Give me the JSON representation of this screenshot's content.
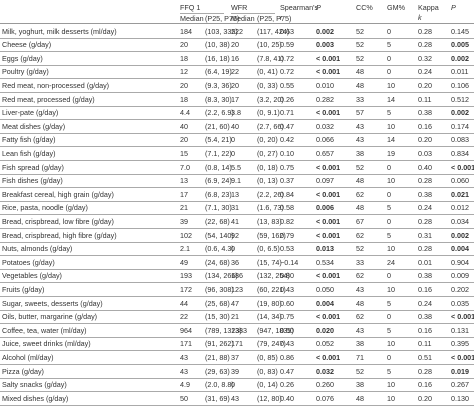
{
  "header": {
    "ffq_group": "FFQ 1",
    "wfr_group": "WFR",
    "median_1": "Median",
    "p_range_1": "(P25, P75)",
    "median_2": "Median",
    "p_range_2": "(P25, P75)",
    "spearman_1": "Spearman's",
    "spearman_2": "r",
    "p_col": "P",
    "cc": "CC%",
    "gm": "GM%",
    "kappa_1": "Kappa",
    "kappa_2": "k",
    "p_col2": "P"
  },
  "rows": [
    {
      "food": "Milk, yoghurt, milk desserts (ml/day)",
      "ffq_median": "184",
      "ffq_range": "(103, 335)",
      "wfr_median": "222",
      "wfr_range": "(117, 424)",
      "spearman": "0.63",
      "p": "0.002",
      "p_bold": true,
      "cc": "52",
      "gm": "0",
      "kappa": "0.28",
      "p2": "0.145",
      "p2_bold": false
    },
    {
      "food": "Cheese (g/day)",
      "ffq_median": "20",
      "ffq_range": "(10, 38)",
      "wfr_median": "20",
      "wfr_range": "(10, 25)",
      "spearman": "0.59",
      "p": "0.003",
      "p_bold": true,
      "cc": "52",
      "gm": "5",
      "kappa": "0.28",
      "p2": "0.005",
      "p2_bold": true
    },
    {
      "food": "Eggs (g/day)",
      "ffq_median": "18",
      "ffq_range": "(16, 18)",
      "wfr_median": "16",
      "wfr_range": "(7.8, 41)",
      "spearman": "0.72",
      "p": "< 0.001",
      "p_bold": true,
      "cc": "52",
      "gm": "0",
      "kappa": "0.32",
      "p2": "0.002",
      "p2_bold": true
    },
    {
      "food": "Poultry (g/day)",
      "ffq_median": "12",
      "ffq_range": "(6.4, 19)",
      "wfr_median": "22",
      "wfr_range": "(0, 41)",
      "spearman": "0.72",
      "p": "< 0.001",
      "p_bold": true,
      "cc": "48",
      "gm": "0",
      "kappa": "0.24",
      "p2": "0.011",
      "p2_bold": false
    },
    {
      "food": "Red meat, non-processed (g/day)",
      "ffq_median": "20",
      "ffq_range": "(9.3, 36)",
      "wfr_median": "20",
      "wfr_range": "(0, 33)",
      "spearman": "0.55",
      "p": "0.010",
      "p_bold": false,
      "cc": "48",
      "gm": "10",
      "kappa": "0.20",
      "p2": "0.106",
      "p2_bold": false
    },
    {
      "food": "Red meat, processed (g/day)",
      "ffq_median": "18",
      "ffq_range": "(8.3, 30)",
      "wfr_median": "17",
      "wfr_range": "(3.2, 20)",
      "spearman": "0.26",
      "p": "0.282",
      "p_bold": false,
      "cc": "33",
      "gm": "14",
      "kappa": "0.11",
      "p2": "0.512",
      "p2_bold": false
    },
    {
      "food": "Liver-pate (g/day)",
      "ffq_median": "4.4",
      "ffq_range": "(2.2, 6.9)",
      "wfr_median": "3.8",
      "wfr_range": "(0, 9.1)",
      "spearman": "0.71",
      "p": "< 0.001",
      "p_bold": true,
      "cc": "57",
      "gm": "5",
      "kappa": "0.38",
      "p2": "0.002",
      "p2_bold": true
    },
    {
      "food": "Meat dishes (g/day)",
      "ffq_median": "40",
      "ffq_range": "(21, 60)",
      "wfr_median": "40",
      "wfr_range": "(2.7, 66)",
      "spearman": "0.47",
      "p": "0.032",
      "p_bold": false,
      "cc": "43",
      "gm": "10",
      "kappa": "0.16",
      "p2": "0.174",
      "p2_bold": false
    },
    {
      "food": "Fatty fish (g/day)",
      "ffq_median": "20",
      "ffq_range": "(5.4, 21)",
      "wfr_median": "0",
      "wfr_range": "(0, 20)",
      "spearman": "0.42",
      "p": "0.066",
      "p_bold": false,
      "cc": "43",
      "gm": "14",
      "kappa": "0.20",
      "p2": "0.083",
      "p2_bold": false
    },
    {
      "food": "Lean fish (g/day)",
      "ffq_median": "15",
      "ffq_range": "(7.1, 22)",
      "wfr_median": "0",
      "wfr_range": "(0, 27)",
      "spearman": "0.10",
      "p": "0.657",
      "p_bold": false,
      "cc": "38",
      "gm": "19",
      "kappa": "0.03",
      "p2": "0.834",
      "p2_bold": false
    },
    {
      "food": "Fish spread (g/day)",
      "ffq_median": "7.0",
      "ffq_range": "(0.8, 14)",
      "wfr_median": "5.5",
      "wfr_range": "(0, 18)",
      "spearman": "0.75",
      "p": "< 0.001",
      "p_bold": true,
      "cc": "52",
      "gm": "0",
      "kappa": "0.40",
      "p2": "< 0.001",
      "p2_bold": true
    },
    {
      "food": "Fish dishes (g/day)",
      "ffq_median": "13",
      "ffq_range": "(6.9, 24)",
      "wfr_median": "9.1",
      "wfr_range": "(0, 13)",
      "spearman": "0.37",
      "p": "0.097",
      "p_bold": false,
      "cc": "48",
      "gm": "10",
      "kappa": "0.28",
      "p2": "0.060",
      "p2_bold": false
    },
    {
      "food": "Breakfast cereal, high grain (g/day)",
      "ffq_median": "17",
      "ffq_range": "(6.8, 23)",
      "wfr_median": "13",
      "wfr_range": "(2.2, 26)",
      "spearman": "0.84",
      "p": "< 0.001",
      "p_bold": true,
      "cc": "62",
      "gm": "0",
      "kappa": "0.38",
      "p2": "0.021",
      "p2_bold": true
    },
    {
      "food": "Rice, pasta, noodle (g/day)",
      "ffq_median": "21",
      "ffq_range": "(7.1, 30)",
      "wfr_median": "31",
      "wfr_range": "(1.6, 73)",
      "spearman": "0.58",
      "p": "0.006",
      "p_bold": true,
      "cc": "48",
      "gm": "5",
      "kappa": "0.24",
      "p2": "0.012",
      "p2_bold": false
    },
    {
      "food": "Bread, crispbread, low fibre (g/day)",
      "ffq_median": "39",
      "ffq_range": "(22, 68)",
      "wfr_median": "41",
      "wfr_range": "(13, 83)",
      "spearman": "0.82",
      "p": "< 0.001",
      "p_bold": true,
      "cc": "67",
      "gm": "0",
      "kappa": "0.28",
      "p2": "0.034",
      "p2_bold": false
    },
    {
      "food": "Bread, crispbread, high fibre (g/day)",
      "ffq_median": "102",
      "ffq_range": "(54, 140)",
      "wfr_median": "92",
      "wfr_range": "(59, 162)",
      "spearman": "0.79",
      "p": "< 0.001",
      "p_bold": true,
      "cc": "62",
      "gm": "5",
      "kappa": "0.31",
      "p2": "0.002",
      "p2_bold": true
    },
    {
      "food": "Nuts, almonds (g/day)",
      "ffq_median": "2.1",
      "ffq_range": "(0.6, 4.3)",
      "wfr_median": "0",
      "wfr_range": "(0, 6.5)",
      "spearman": "0.53",
      "p": "0.013",
      "p_bold": true,
      "cc": "52",
      "gm": "10",
      "kappa": "0.28",
      "p2": "0.004",
      "p2_bold": true
    },
    {
      "food": "Potatoes (g/day)",
      "ffq_median": "49",
      "ffq_range": "(24, 68)",
      "wfr_median": "36",
      "wfr_range": "(15, 74)",
      "spearman": "−0.14",
      "p": "0.534",
      "p_bold": false,
      "cc": "33",
      "gm": "24",
      "kappa": "0.01",
      "p2": "0.904",
      "p2_bold": false
    },
    {
      "food": "Vegetables (g/day)",
      "ffq_median": "193",
      "ffq_range": "(134, 266)",
      "wfr_median": "186",
      "wfr_range": "(132, 254)",
      "spearman": "0.80",
      "p": "< 0.001",
      "p_bold": true,
      "cc": "62",
      "gm": "0",
      "kappa": "0.38",
      "p2": "0.009",
      "p2_bold": false
    },
    {
      "food": "Fruits (g/day)",
      "ffq_median": "172",
      "ffq_range": "(96, 308)",
      "wfr_median": "123",
      "wfr_range": "(60, 221)",
      "spearman": "0.43",
      "p": "0.050",
      "p_bold": false,
      "cc": "43",
      "gm": "10",
      "kappa": "0.16",
      "p2": "0.202",
      "p2_bold": false
    },
    {
      "food": "Sugar, sweets, desserts (g/day)",
      "ffq_median": "44",
      "ffq_range": "(25, 68)",
      "wfr_median": "47",
      "wfr_range": "(19, 80)",
      "spearman": "0.60",
      "p": "0.004",
      "p_bold": true,
      "cc": "48",
      "gm": "5",
      "kappa": "0.24",
      "p2": "0.035",
      "p2_bold": false
    },
    {
      "food": "Oils, butter, margarine (g/day)",
      "ffq_median": "22",
      "ffq_range": "(15, 30)",
      "wfr_median": "21",
      "wfr_range": "(14, 34)",
      "spearman": "0.75",
      "p": "< 0.001",
      "p_bold": true,
      "cc": "62",
      "gm": "0",
      "kappa": "0.38",
      "p2": "< 0.001",
      "p2_bold": true
    },
    {
      "food": "Coffee, tea, water (ml/day)",
      "ffq_median": "964",
      "ffq_range": "(789, 1323)",
      "wfr_median": "1383",
      "wfr_range": "(947, 1835)",
      "spearman": "0.50",
      "p": "0.020",
      "p_bold": true,
      "cc": "43",
      "gm": "5",
      "kappa": "0.16",
      "p2": "0.131",
      "p2_bold": false
    },
    {
      "food": "Juice, sweet drinks (ml/day)",
      "ffq_median": "171",
      "ffq_range": "(91, 262)",
      "wfr_median": "171",
      "wfr_range": "(79, 247)",
      "spearman": "0.43",
      "p": "0.052",
      "p_bold": false,
      "cc": "38",
      "gm": "10",
      "kappa": "0.11",
      "p2": "0.395",
      "p2_bold": false
    },
    {
      "food": "Alcohol (ml/day)",
      "ffq_median": "43",
      "ffq_range": "(21, 88)",
      "wfr_median": "37",
      "wfr_range": "(0, 85)",
      "spearman": "0.86",
      "p": "< 0.001",
      "p_bold": true,
      "cc": "71",
      "gm": "0",
      "kappa": "0.51",
      "p2": "< 0.001",
      "p2_bold": true
    },
    {
      "food": "Pizza (g/day)",
      "ffq_median": "43",
      "ffq_range": "(29, 63)",
      "wfr_median": "39",
      "wfr_range": "(0, 83)",
      "spearman": "0.47",
      "p": "0.032",
      "p_bold": true,
      "cc": "52",
      "gm": "5",
      "kappa": "0.28",
      "p2": "0.019",
      "p2_bold": true
    },
    {
      "food": "Salty snacks (g/day)",
      "ffq_median": "4.9",
      "ffq_range": "(2.0, 8.8)",
      "wfr_median": "0",
      "wfr_range": "(0, 14)",
      "spearman": "0.26",
      "p": "0.260",
      "p_bold": false,
      "cc": "38",
      "gm": "10",
      "kappa": "0.16",
      "p2": "0.267",
      "p2_bold": false
    },
    {
      "food": "Mixed dishes (g/day)",
      "ffq_median": "50",
      "ffq_range": "(31, 69)",
      "wfr_median": "43",
      "wfr_range": "(12, 80)",
      "spearman": "0.40",
      "p": "0.076",
      "p_bold": false,
      "cc": "48",
      "gm": "10",
      "kappa": "0.20",
      "p2": "0.130",
      "p2_bold": false
    }
  ]
}
